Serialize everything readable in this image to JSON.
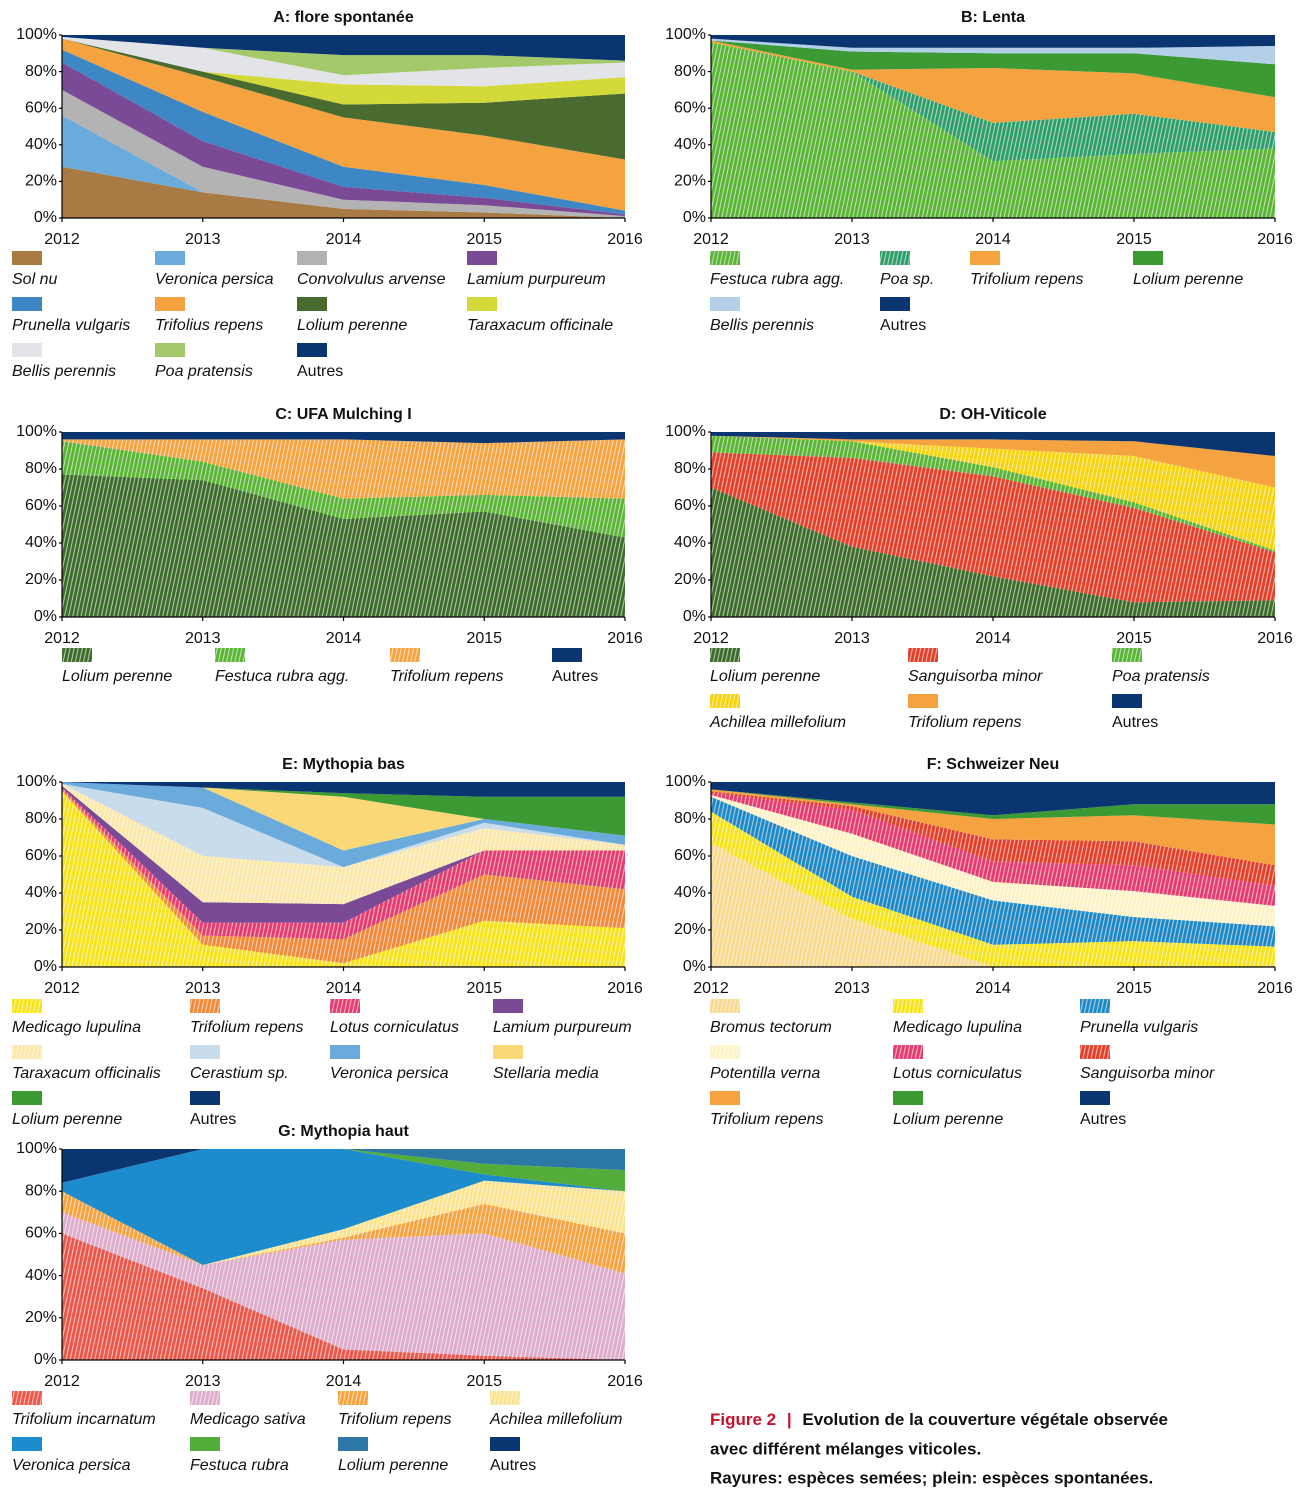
{
  "chart_data": [
    {
      "type": "stacked-area",
      "title": "A: flore spontanée",
      "categories": [
        "2012",
        "2013",
        "2014",
        "2015",
        "2016"
      ],
      "ylim": [
        0,
        100
      ],
      "yticks": [
        {
          "value": 0,
          "label": "0%"
        },
        {
          "value": 20,
          "label": "20%"
        },
        {
          "value": 40,
          "label": "40%"
        },
        {
          "value": 60,
          "label": "60%"
        },
        {
          "value": 80,
          "label": "80%"
        },
        {
          "value": 100,
          "label": "100%"
        }
      ],
      "grid": false,
      "series": [
        {
          "name": "Sol nu",
          "color": "#a87a44",
          "hatched": false,
          "values": [
            28,
            14,
            5,
            3,
            0
          ]
        },
        {
          "name": "Veronica persica",
          "color": "#6aabdb",
          "hatched": false,
          "values": [
            28,
            0,
            0,
            0,
            0
          ]
        },
        {
          "name": "Convolvulus arvense",
          "color": "#b3b3b3",
          "hatched": false,
          "values": [
            14,
            14,
            5,
            4,
            1
          ]
        },
        {
          "name": "Lamium purpureum",
          "color": "#7b4a97",
          "hatched": false,
          "values": [
            15,
            14,
            7,
            4,
            1
          ]
        },
        {
          "name": "Prunella vulgaris",
          "color": "#3d87c4",
          "hatched": false,
          "values": [
            7,
            16,
            11,
            7,
            2
          ]
        },
        {
          "name": "Trifolius repens",
          "color": "#f4a340",
          "hatched": false,
          "values": [
            6,
            19,
            27,
            27,
            28
          ]
        },
        {
          "name": "Lolium perenne",
          "color": "#4a6b2f",
          "hatched": false,
          "values": [
            0,
            3,
            7,
            18,
            36
          ]
        },
        {
          "name": "Taraxacum officinale",
          "color": "#d4d93a",
          "hatched": false,
          "values": [
            0,
            0,
            11,
            9,
            9
          ]
        },
        {
          "name": "Bellis perennis",
          "color": "#e3e4e8",
          "hatched": false,
          "values": [
            1,
            13,
            5,
            10,
            8
          ]
        },
        {
          "name": "Poa pratensis",
          "color": "#a4c96b",
          "hatched": false,
          "values": [
            0,
            0,
            11,
            7,
            1
          ]
        },
        {
          "name": "Autres",
          "color": "#0b3570",
          "hatched": false,
          "italic": false,
          "values": [
            1,
            7,
            11,
            11,
            14
          ]
        }
      ]
    },
    {
      "type": "stacked-area",
      "title": "B: Lenta",
      "categories": [
        "2012",
        "2013",
        "2014",
        "2015",
        "2016"
      ],
      "ylim": [
        0,
        100
      ],
      "yticks": [
        {
          "value": 0,
          "label": "0%"
        },
        {
          "value": 20,
          "label": "20%"
        },
        {
          "value": 40,
          "label": "40%"
        },
        {
          "value": 60,
          "label": "60%"
        },
        {
          "value": 80,
          "label": "80%"
        },
        {
          "value": 100,
          "label": "100%"
        }
      ],
      "grid": false,
      "series": [
        {
          "name": "Festuca rubra agg.",
          "color": "#5ab435",
          "hatched": true,
          "values": [
            96,
            80,
            31,
            35,
            38
          ]
        },
        {
          "name": "Poa sp.",
          "color": "#2f9d6a",
          "hatched": true,
          "values": [
            0,
            0,
            21,
            22,
            9
          ]
        },
        {
          "name": "Trifolium repens",
          "color": "#f4a340",
          "hatched": false,
          "values": [
            1,
            1,
            30,
            22,
            19
          ]
        },
        {
          "name": "Lolium perenne",
          "color": "#3c9a35",
          "hatched": false,
          "values": [
            0,
            10,
            8,
            11,
            18
          ]
        },
        {
          "name": "Bellis perennis",
          "color": "#b4cfe8",
          "hatched": false,
          "values": [
            1,
            2,
            3,
            3,
            10
          ]
        },
        {
          "name": "Autres",
          "color": "#0b3570",
          "hatched": false,
          "italic": false,
          "values": [
            2,
            7,
            7,
            7,
            6
          ]
        }
      ]
    },
    {
      "type": "stacked-area",
      "title": "C: UFA Mulching I",
      "categories": [
        "2012",
        "2013",
        "2014",
        "2015",
        "2016"
      ],
      "ylim": [
        0,
        100
      ],
      "yticks": [
        {
          "value": 0,
          "label": "0%"
        },
        {
          "value": 20,
          "label": "20%"
        },
        {
          "value": 40,
          "label": "40%"
        },
        {
          "value": 60,
          "label": "60%"
        },
        {
          "value": 80,
          "label": "80%"
        },
        {
          "value": 100,
          "label": "100%"
        }
      ],
      "grid": false,
      "series": [
        {
          "name": "Lolium perenne",
          "color": "#3d6b2a",
          "hatched": true,
          "values": [
            77,
            74,
            53,
            57,
            43
          ]
        },
        {
          "name": "Festuca rubra agg.",
          "color": "#5ab435",
          "hatched": true,
          "values": [
            18,
            10,
            11,
            9,
            21
          ]
        },
        {
          "name": "Trifolium repens",
          "color": "#f4a340",
          "hatched": true,
          "values": [
            1,
            12,
            32,
            28,
            32
          ]
        },
        {
          "name": "Autres",
          "color": "#0b3570",
          "hatched": false,
          "italic": false,
          "values": [
            4,
            4,
            4,
            6,
            4
          ]
        }
      ]
    },
    {
      "type": "stacked-area",
      "title": "D: OH-Viticole",
      "categories": [
        "2012",
        "2013",
        "2014",
        "2015",
        "2016"
      ],
      "ylim": [
        0,
        100
      ],
      "yticks": [
        {
          "value": 0,
          "label": "0%"
        },
        {
          "value": 20,
          "label": "20%"
        },
        {
          "value": 40,
          "label": "40%"
        },
        {
          "value": 60,
          "label": "60%"
        },
        {
          "value": 80,
          "label": "80%"
        },
        {
          "value": 100,
          "label": "100%"
        }
      ],
      "grid": false,
      "series": [
        {
          "name": "Lolium perenne",
          "color": "#3d6b2a",
          "hatched": true,
          "values": [
            70,
            38,
            22,
            8,
            9
          ]
        },
        {
          "name": "Sanguisorba minor",
          "color": "#e1412a",
          "hatched": true,
          "values": [
            19,
            48,
            54,
            51,
            26
          ]
        },
        {
          "name": "Poa pratensis",
          "color": "#5ab435",
          "hatched": true,
          "values": [
            9,
            9,
            5,
            3,
            1
          ]
        },
        {
          "name": "Achillea millefolium",
          "color": "#f6d20f",
          "hatched": true,
          "values": [
            0,
            0,
            10,
            25,
            34
          ]
        },
        {
          "name": "Trifolium repens",
          "color": "#f4a340",
          "hatched": false,
          "values": [
            0,
            1,
            5,
            8,
            17
          ]
        },
        {
          "name": "Autres",
          "color": "#0b3570",
          "hatched": false,
          "italic": false,
          "values": [
            2,
            4,
            4,
            5,
            13
          ]
        }
      ]
    },
    {
      "type": "stacked-area",
      "title": "E: Mythopia bas",
      "categories": [
        "2012",
        "2013",
        "2014",
        "2015",
        "2016"
      ],
      "ylim": [
        0,
        100
      ],
      "yticks": [
        {
          "value": 0,
          "label": "0%"
        },
        {
          "value": 20,
          "label": "20%"
        },
        {
          "value": 40,
          "label": "40%"
        },
        {
          "value": 60,
          "label": "60%"
        },
        {
          "value": 80,
          "label": "80%"
        },
        {
          "value": 100,
          "label": "100%"
        }
      ],
      "grid": false,
      "series": [
        {
          "name": "Medicago lupulina",
          "color": "#f5e21a",
          "hatched": true,
          "values": [
            95,
            12,
            2,
            25,
            21
          ]
        },
        {
          "name": "Trifolium repens",
          "color": "#f08a3a",
          "hatched": true,
          "values": [
            1,
            5,
            13,
            25,
            21
          ]
        },
        {
          "name": "Lotus corniculatus",
          "color": "#e33c6e",
          "hatched": true,
          "values": [
            1,
            7,
            9,
            13,
            21
          ]
        },
        {
          "name": "Lamium purpureum",
          "color": "#7b4a97",
          "hatched": false,
          "values": [
            1,
            11,
            10,
            0,
            0
          ]
        },
        {
          "name": "Taraxacum officinalis",
          "color": "#fbe7a8",
          "hatched": true,
          "values": [
            1,
            25,
            20,
            12,
            3
          ]
        },
        {
          "name": "Cerastium sp.",
          "color": "#c8dcec",
          "hatched": false,
          "values": [
            0,
            26,
            0,
            3,
            0
          ]
        },
        {
          "name": "Veronica persica",
          "color": "#6aabdb",
          "hatched": false,
          "values": [
            1,
            11,
            9,
            2,
            5
          ]
        },
        {
          "name": "Stellaria media",
          "color": "#fbd877",
          "hatched": false,
          "values": [
            0,
            0,
            29,
            0,
            0
          ]
        },
        {
          "name": "Lolium perenne",
          "color": "#3c9a35",
          "hatched": false,
          "values": [
            0,
            0,
            2,
            12,
            21
          ]
        },
        {
          "name": "Autres",
          "color": "#0b3570",
          "hatched": false,
          "italic": false,
          "values": [
            0,
            3,
            6,
            8,
            8
          ]
        }
      ]
    },
    {
      "type": "stacked-area",
      "title": "F: Schweizer Neu",
      "categories": [
        "2012",
        "2013",
        "2014",
        "2015",
        "2016"
      ],
      "ylim": [
        0,
        100
      ],
      "yticks": [
        {
          "value": 0,
          "label": "0%"
        },
        {
          "value": 20,
          "label": "20%"
        },
        {
          "value": 40,
          "label": "40%"
        },
        {
          "value": 60,
          "label": "60%"
        },
        {
          "value": 80,
          "label": "80%"
        },
        {
          "value": 100,
          "label": "100%"
        }
      ],
      "grid": false,
      "series": [
        {
          "name": "Bromus tectorum",
          "color": "#f8d98e",
          "hatched": true,
          "values": [
            67,
            26,
            0,
            0,
            0
          ]
        },
        {
          "name": "Medicago lupulina",
          "color": "#f5e21a",
          "hatched": true,
          "values": [
            17,
            12,
            12,
            14,
            11
          ]
        },
        {
          "name": "Prunella vulgaris",
          "color": "#1f87c4",
          "hatched": true,
          "values": [
            8,
            22,
            24,
            13,
            11
          ]
        },
        {
          "name": "Potentilla verna",
          "color": "#fdf2c6",
          "hatched": true,
          "values": [
            1,
            12,
            10,
            14,
            11
          ]
        },
        {
          "name": "Lotus corniculatus",
          "color": "#e33c6e",
          "hatched": true,
          "values": [
            1,
            13,
            11,
            14,
            11
          ]
        },
        {
          "name": "Sanguisorba minor",
          "color": "#e1412a",
          "hatched": true,
          "values": [
            1,
            2,
            12,
            13,
            11
          ]
        },
        {
          "name": "Trifolium repens",
          "color": "#f4a340",
          "hatched": false,
          "values": [
            1,
            1,
            11,
            14,
            22
          ]
        },
        {
          "name": "Lolium perenne",
          "color": "#3c9a35",
          "hatched": false,
          "values": [
            0,
            1,
            2,
            6,
            11
          ]
        },
        {
          "name": "Autres",
          "color": "#0b3570",
          "hatched": false,
          "italic": false,
          "values": [
            4,
            11,
            18,
            12,
            12
          ]
        }
      ]
    },
    {
      "type": "stacked-area",
      "title": "G: Mythopia haut",
      "categories": [
        "2012",
        "2013",
        "2014",
        "2015",
        "2016"
      ],
      "ylim": [
        0,
        100
      ],
      "yticks": [
        {
          "value": 0,
          "label": "0%"
        },
        {
          "value": 20,
          "label": "20%"
        },
        {
          "value": 40,
          "label": "40%"
        },
        {
          "value": 60,
          "label": "60%"
        },
        {
          "value": 80,
          "label": "80%"
        },
        {
          "value": 100,
          "label": "100%"
        }
      ],
      "grid": false,
      "series": [
        {
          "name": "Trifolium incarnatum",
          "color": "#e8574a",
          "hatched": true,
          "values": [
            60,
            34,
            5,
            2,
            0
          ]
        },
        {
          "name": "Medicago sativa",
          "color": "#deaccb",
          "hatched": true,
          "values": [
            10,
            11,
            52,
            58,
            41
          ]
        },
        {
          "name": "Trifolium repens",
          "color": "#f4a340",
          "hatched": true,
          "values": [
            10,
            0,
            1,
            14,
            19
          ]
        },
        {
          "name": "Achilea millefolium",
          "color": "#fbe28e",
          "hatched": true,
          "values": [
            0,
            0,
            4,
            11,
            20
          ]
        },
        {
          "name": "Veronica persica",
          "color": "#1c8ccc",
          "hatched": false,
          "values": [
            4,
            55,
            38,
            3,
            0
          ]
        },
        {
          "name": "Festuca rubra",
          "color": "#54ad3a",
          "hatched": false,
          "values": [
            0,
            0,
            0,
            5,
            10
          ]
        },
        {
          "name": "Lolium perenne",
          "color": "#2b78a6",
          "hatched": false,
          "values": [
            0,
            0,
            0,
            7,
            10
          ]
        },
        {
          "name": "Autres",
          "color": "#0b3570",
          "hatched": false,
          "italic": false,
          "values": [
            16,
            0,
            0,
            0,
            0
          ]
        }
      ]
    }
  ],
  "caption": {
    "label": "Figure 2",
    "separator": "|",
    "lines": [
      "Evolution de la couverture végétale observée",
      "avec différent mélanges viticoles.",
      "Rayures: espèces semées; plein: espèces spontanées."
    ]
  }
}
